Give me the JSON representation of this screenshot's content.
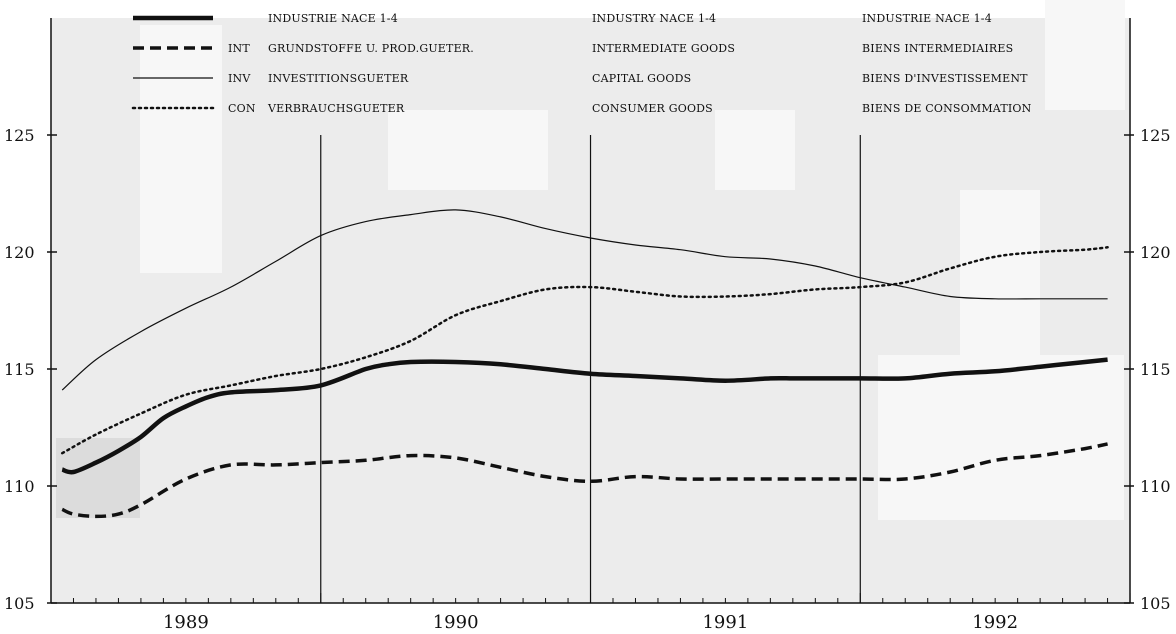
{
  "chart_data": {
    "type": "line",
    "xlabel": "",
    "ylabel": "",
    "ylim": [
      105,
      127
    ],
    "y_ticks": [
      "105",
      "110",
      "115",
      "120",
      "125"
    ],
    "x_years": [
      "1989",
      "1990",
      "1991",
      "1992"
    ],
    "x_range_months": [
      0,
      48
    ],
    "grid": false,
    "legend_position": "top",
    "legend": [
      {
        "code": "",
        "de": "INDUSTRIE NACE 1-4",
        "en": "INDUSTRY NACE 1-4",
        "fr": "INDUSTRIE NACE 1-4"
      },
      {
        "code": "INT",
        "de": "GRUNDSTOFFE U. PROD.GUETER.",
        "en": "INTERMEDIATE GOODS",
        "fr": "BIENS INTERMEDIAIRES"
      },
      {
        "code": "INV",
        "de": "INVESTITIONSGUETER",
        "en": "CAPITAL GOODS",
        "fr": "BIENS D'INVESTISSEMENT"
      },
      {
        "code": "CON",
        "de": "VERBRAUCHSGUETER",
        "en": "CONSUMER GOODS",
        "fr": "BIENS DE CONSOMMATION"
      }
    ],
    "series": [
      {
        "style": "thick",
        "x": [
          0.5,
          1,
          2,
          3,
          4,
          5,
          6,
          7,
          8,
          10,
          12,
          14,
          15,
          16,
          18,
          20,
          22,
          24,
          26,
          28,
          30,
          32,
          33,
          34,
          36,
          38,
          40,
          42,
          44,
          46,
          47
        ],
        "y": [
          110.7,
          110.6,
          111.0,
          111.5,
          112.1,
          112.9,
          113.4,
          113.8,
          114.0,
          114.1,
          114.3,
          115.0,
          115.2,
          115.3,
          115.3,
          115.2,
          115.0,
          114.8,
          114.7,
          114.6,
          114.5,
          114.6,
          114.6,
          114.6,
          114.6,
          114.6,
          114.8,
          114.9,
          115.1,
          115.3,
          115.4
        ]
      },
      {
        "style": "dashed",
        "x": [
          0.5,
          1,
          2,
          3,
          4,
          6,
          8,
          10,
          12,
          14,
          16,
          18,
          20,
          22,
          24,
          26,
          28,
          30,
          32,
          34,
          36,
          38,
          40,
          42,
          44,
          46,
          47
        ],
        "y": [
          109.0,
          108.8,
          108.7,
          108.8,
          109.2,
          110.3,
          110.9,
          110.9,
          111.0,
          111.1,
          111.3,
          111.2,
          110.8,
          110.4,
          110.2,
          110.4,
          110.3,
          110.3,
          110.3,
          110.3,
          110.3,
          110.3,
          110.6,
          111.1,
          111.3,
          111.6,
          111.8
        ]
      },
      {
        "style": "thin",
        "x": [
          0.5,
          2,
          4,
          6,
          8,
          10,
          12,
          14,
          16,
          18,
          20,
          22,
          24,
          26,
          28,
          30,
          32,
          34,
          36,
          38,
          40,
          42,
          44,
          46,
          47
        ],
        "y": [
          114.1,
          115.4,
          116.6,
          117.6,
          118.5,
          119.6,
          120.7,
          121.3,
          121.6,
          121.8,
          121.5,
          121.0,
          120.6,
          120.3,
          120.1,
          119.8,
          119.7,
          119.4,
          118.9,
          118.5,
          118.1,
          118.0,
          118.0,
          118.0,
          118.0
        ]
      },
      {
        "style": "dotted",
        "x": [
          0.5,
          2,
          4,
          6,
          8,
          10,
          12,
          14,
          16,
          18,
          20,
          22,
          24,
          26,
          28,
          30,
          32,
          34,
          36,
          38,
          40,
          42,
          44,
          46,
          47
        ],
        "y": [
          111.4,
          112.2,
          113.1,
          113.9,
          114.3,
          114.7,
          115.0,
          115.5,
          116.2,
          117.3,
          117.9,
          118.4,
          118.5,
          118.3,
          118.1,
          118.1,
          118.2,
          118.4,
          118.5,
          118.7,
          119.3,
          119.8,
          120.0,
          120.1,
          120.2
        ]
      }
    ]
  }
}
